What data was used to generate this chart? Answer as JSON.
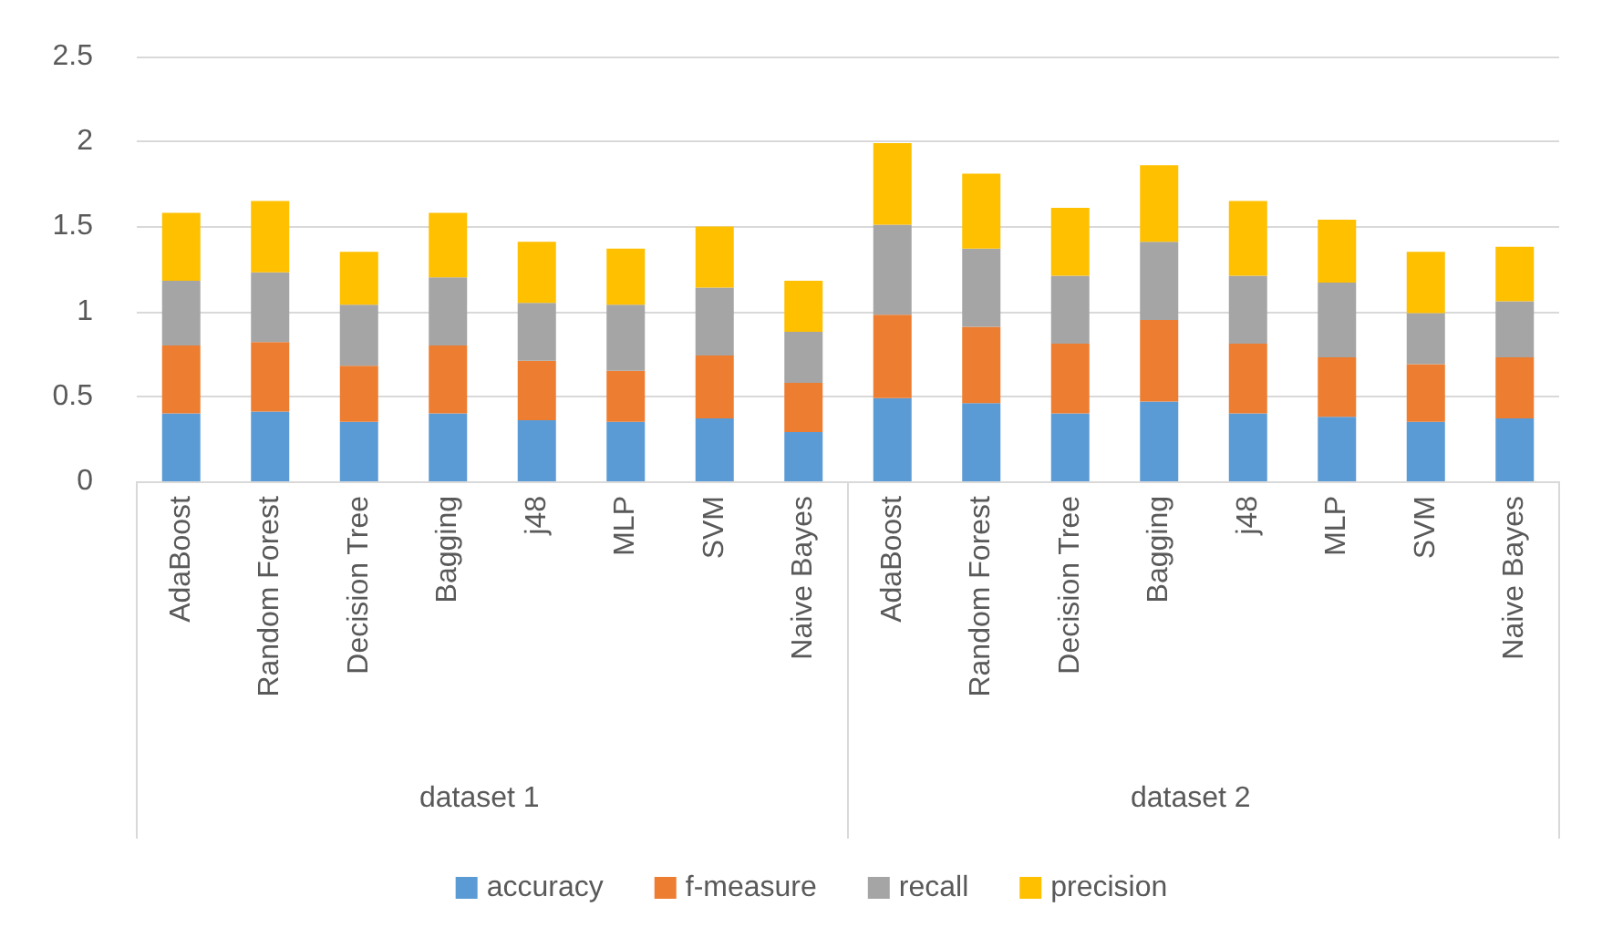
{
  "chart_data": {
    "type": "bar",
    "stacked": true,
    "categories": [
      "AdaBoost",
      "Random Forest",
      "Decision Tree",
      "Bagging",
      "j48",
      "MLP",
      "SVM",
      "Naive Bayes",
      "AdaBoost",
      "Random Forest",
      "Decision Tree",
      "Bagging",
      "j48",
      "MLP",
      "SVM",
      "Naive Bayes"
    ],
    "series": [
      {
        "name": "accuracy",
        "color": "#5b9bd5",
        "values": [
          0.4,
          0.41,
          0.35,
          0.4,
          0.36,
          0.35,
          0.37,
          0.29,
          0.49,
          0.46,
          0.4,
          0.47,
          0.4,
          0.38,
          0.35,
          0.37
        ]
      },
      {
        "name": "f-measure",
        "color": "#ed7d31",
        "values": [
          0.4,
          0.41,
          0.33,
          0.4,
          0.35,
          0.3,
          0.37,
          0.29,
          0.49,
          0.45,
          0.41,
          0.48,
          0.41,
          0.35,
          0.34,
          0.36
        ]
      },
      {
        "name": "recall",
        "color": "#a5a5a5",
        "values": [
          0.38,
          0.41,
          0.36,
          0.4,
          0.34,
          0.39,
          0.4,
          0.3,
          0.53,
          0.46,
          0.4,
          0.46,
          0.4,
          0.44,
          0.3,
          0.33
        ]
      },
      {
        "name": "precision",
        "color": "#ffc000",
        "values": [
          0.4,
          0.42,
          0.31,
          0.38,
          0.36,
          0.33,
          0.36,
          0.3,
          0.48,
          0.44,
          0.4,
          0.45,
          0.44,
          0.37,
          0.36,
          0.32
        ]
      }
    ],
    "ylim": [
      0,
      2.5
    ],
    "yticks": [
      0,
      0.5,
      1,
      1.5,
      2,
      2.5
    ],
    "grid": "y",
    "legend": "bottom",
    "annotations": [
      "dataset 1",
      "dataset 2"
    ]
  }
}
